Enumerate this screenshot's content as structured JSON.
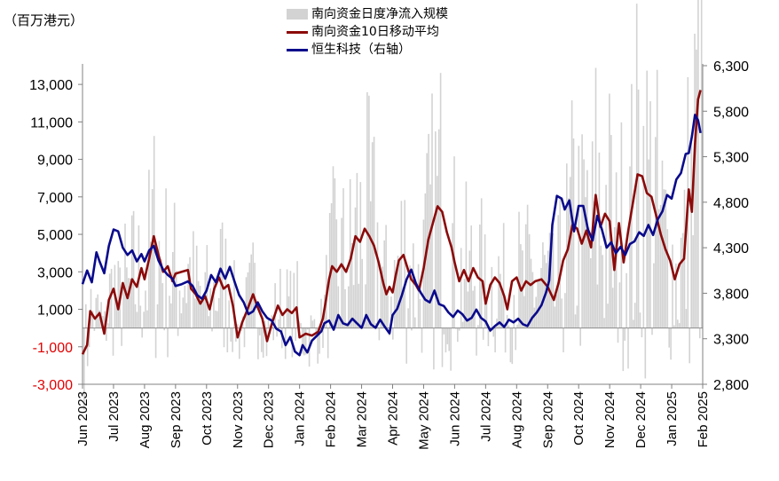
{
  "chart_data": {
    "type": "bar+line",
    "unit_label": "（百万港元）",
    "legend": [
      {
        "name": "南向资金日度净流入规模",
        "kind": "bar",
        "color": "#d3d3d3"
      },
      {
        "name": "南向资金10日移动平均",
        "kind": "line",
        "color": "#8b0a0a"
      },
      {
        "name": "恒生科技（右轴）",
        "kind": "line",
        "color": "#0a0a8c"
      }
    ],
    "left_axis": {
      "min": -3000,
      "max": 14000,
      "ticks": [
        -3000,
        -1000,
        1000,
        3000,
        5000,
        7000,
        9000,
        11000,
        13000
      ],
      "tick_labels": [
        "-3,000",
        "-1,000",
        "1,000",
        "3,000",
        "5,000",
        "7,000",
        "9,000",
        "11,000",
        "13,000"
      ],
      "negative_color": "#e00000"
    },
    "right_axis": {
      "min": 2800,
      "max": 6300,
      "ticks": [
        2800,
        3300,
        3800,
        4300,
        4800,
        5300,
        5800,
        6300
      ],
      "tick_labels": [
        "2,800",
        "3,300",
        "3,800",
        "4,300",
        "4,800",
        "5,300",
        "5,800",
        "6,300"
      ]
    },
    "x_range": [
      0,
      20
    ],
    "x_tick_labels": [
      "Jun 2023",
      "Jul 2023",
      "Aug 2023",
      "Sep 2023",
      "Oct 2023",
      "Nov 2023",
      "Dec 2023",
      "Jan 2024",
      "Feb 2024",
      "Mar 2024",
      "Apr 2024",
      "May 2024",
      "Jun 2024",
      "Jul 2024",
      "Aug 2024",
      "Sep 2024",
      "Oct 2024",
      "Nov 2024",
      "Dec 2024",
      "Jan 2025",
      "Feb 2025"
    ],
    "series": [
      {
        "name": "南向资金10日移动平均",
        "axis": "left",
        "points": [
          [
            0.0,
            -1400
          ],
          [
            0.15,
            -900
          ],
          [
            0.25,
            900
          ],
          [
            0.4,
            500
          ],
          [
            0.55,
            800
          ],
          [
            0.7,
            -300
          ],
          [
            0.85,
            1500
          ],
          [
            1.0,
            2100
          ],
          [
            1.15,
            1000
          ],
          [
            1.3,
            2400
          ],
          [
            1.45,
            1600
          ],
          [
            1.6,
            2600
          ],
          [
            1.75,
            2200
          ],
          [
            1.9,
            3200
          ],
          [
            2.0,
            2600
          ],
          [
            2.15,
            3700
          ],
          [
            2.3,
            4900
          ],
          [
            2.45,
            3900
          ],
          [
            2.6,
            3000
          ],
          [
            2.75,
            3300
          ],
          [
            2.9,
            2500
          ],
          [
            3.0,
            2900
          ],
          [
            3.2,
            3000
          ],
          [
            3.4,
            3100
          ],
          [
            3.5,
            2100
          ],
          [
            3.65,
            1800
          ],
          [
            3.8,
            1300
          ],
          [
            3.95,
            1700
          ],
          [
            4.1,
            1000
          ],
          [
            4.25,
            2100
          ],
          [
            4.4,
            2700
          ],
          [
            4.55,
            2100
          ],
          [
            4.7,
            2300
          ],
          [
            4.85,
            1200
          ],
          [
            5.0,
            -500
          ],
          [
            5.15,
            300
          ],
          [
            5.3,
            900
          ],
          [
            5.5,
            1800
          ],
          [
            5.65,
            1100
          ],
          [
            5.8,
            500
          ],
          [
            5.95,
            -700
          ],
          [
            6.1,
            200
          ],
          [
            6.3,
            1200
          ],
          [
            6.45,
            700
          ],
          [
            6.6,
            1000
          ],
          [
            6.75,
            800
          ],
          [
            6.9,
            1100
          ],
          [
            7.0,
            -500
          ],
          [
            7.2,
            -300
          ],
          [
            7.4,
            -400
          ],
          [
            7.6,
            -200
          ],
          [
            7.75,
            500
          ],
          [
            7.85,
            1500
          ],
          [
            7.95,
            2600
          ],
          [
            8.05,
            3300
          ],
          [
            8.2,
            3000
          ],
          [
            8.35,
            3400
          ],
          [
            8.5,
            3000
          ],
          [
            8.65,
            3700
          ],
          [
            8.8,
            4900
          ],
          [
            8.95,
            4600
          ],
          [
            9.1,
            5300
          ],
          [
            9.25,
            4900
          ],
          [
            9.4,
            4400
          ],
          [
            9.55,
            3500
          ],
          [
            9.7,
            2400
          ],
          [
            9.8,
            1800
          ],
          [
            9.9,
            2200
          ],
          [
            10.0,
            1900
          ],
          [
            10.1,
            2800
          ],
          [
            10.2,
            3600
          ],
          [
            10.35,
            3900
          ],
          [
            10.5,
            3100
          ],
          [
            10.6,
            2600
          ],
          [
            10.75,
            2300
          ],
          [
            10.85,
            2000
          ],
          [
            11.0,
            3200
          ],
          [
            11.15,
            4700
          ],
          [
            11.3,
            5600
          ],
          [
            11.45,
            6500
          ],
          [
            11.6,
            6200
          ],
          [
            11.75,
            5100
          ],
          [
            11.9,
            4300
          ],
          [
            12.0,
            3500
          ],
          [
            12.15,
            2500
          ],
          [
            12.3,
            3100
          ],
          [
            12.45,
            2500
          ],
          [
            12.6,
            3200
          ],
          [
            12.75,
            2700
          ],
          [
            12.9,
            2500
          ],
          [
            13.0,
            1300
          ],
          [
            13.15,
            2300
          ],
          [
            13.3,
            2700
          ],
          [
            13.45,
            2400
          ],
          [
            13.6,
            1700
          ],
          [
            13.7,
            1000
          ],
          [
            13.85,
            2500
          ],
          [
            14.0,
            2700
          ],
          [
            14.15,
            2000
          ],
          [
            14.3,
            2500
          ],
          [
            14.45,
            2300
          ],
          [
            14.6,
            2500
          ],
          [
            14.8,
            2600
          ],
          [
            15.0,
            2200
          ],
          [
            15.2,
            1500
          ],
          [
            15.35,
            2400
          ],
          [
            15.5,
            3600
          ],
          [
            15.65,
            4200
          ],
          [
            15.8,
            5500
          ],
          [
            15.95,
            5300
          ],
          [
            16.1,
            4500
          ],
          [
            16.25,
            5200
          ],
          [
            16.4,
            4300
          ],
          [
            16.55,
            7100
          ],
          [
            16.7,
            5400
          ],
          [
            16.85,
            6100
          ],
          [
            17.0,
            5700
          ],
          [
            17.15,
            3100
          ],
          [
            17.3,
            5600
          ],
          [
            17.45,
            3500
          ],
          [
            17.6,
            5200
          ],
          [
            17.75,
            6700
          ],
          [
            17.9,
            8200
          ],
          [
            18.05,
            8100
          ],
          [
            18.2,
            7200
          ],
          [
            18.35,
            7000
          ],
          [
            18.5,
            6000
          ],
          [
            18.65,
            5000
          ],
          [
            18.8,
            4200
          ],
          [
            18.95,
            3600
          ],
          [
            19.1,
            2600
          ],
          [
            19.25,
            3400
          ],
          [
            19.4,
            3700
          ],
          [
            19.55,
            7400
          ],
          [
            19.65,
            6200
          ],
          [
            19.75,
            9800
          ],
          [
            19.85,
            12200
          ],
          [
            19.93,
            12700
          ]
        ]
      },
      {
        "name": "恒生科技（右轴）",
        "axis": "right",
        "points": [
          [
            0.0,
            3900
          ],
          [
            0.15,
            4050
          ],
          [
            0.3,
            3920
          ],
          [
            0.45,
            4250
          ],
          [
            0.55,
            4150
          ],
          [
            0.7,
            4020
          ],
          [
            0.85,
            4320
          ],
          [
            1.0,
            4500
          ],
          [
            1.15,
            4480
          ],
          [
            1.3,
            4300
          ],
          [
            1.45,
            4220
          ],
          [
            1.6,
            4270
          ],
          [
            1.75,
            4150
          ],
          [
            1.9,
            4230
          ],
          [
            2.0,
            4150
          ],
          [
            2.15,
            4270
          ],
          [
            2.3,
            4320
          ],
          [
            2.45,
            4160
          ],
          [
            2.6,
            4060
          ],
          [
            2.75,
            4000
          ],
          [
            2.9,
            3960
          ],
          [
            3.0,
            3880
          ],
          [
            3.2,
            3900
          ],
          [
            3.4,
            3930
          ],
          [
            3.55,
            3880
          ],
          [
            3.7,
            3780
          ],
          [
            3.85,
            3740
          ],
          [
            4.0,
            3830
          ],
          [
            4.15,
            4000
          ],
          [
            4.3,
            3920
          ],
          [
            4.45,
            4070
          ],
          [
            4.6,
            3960
          ],
          [
            4.75,
            4090
          ],
          [
            4.9,
            3930
          ],
          [
            5.05,
            3780
          ],
          [
            5.2,
            3700
          ],
          [
            5.35,
            3570
          ],
          [
            5.5,
            3600
          ],
          [
            5.65,
            3700
          ],
          [
            5.8,
            3600
          ],
          [
            5.95,
            3530
          ],
          [
            6.1,
            3500
          ],
          [
            6.25,
            3410
          ],
          [
            6.4,
            3380
          ],
          [
            6.55,
            3230
          ],
          [
            6.7,
            3320
          ],
          [
            6.85,
            3160
          ],
          [
            7.0,
            3120
          ],
          [
            7.1,
            3230
          ],
          [
            7.25,
            3150
          ],
          [
            7.4,
            3280
          ],
          [
            7.55,
            3330
          ],
          [
            7.7,
            3380
          ],
          [
            7.8,
            3470
          ],
          [
            7.95,
            3500
          ],
          [
            8.1,
            3400
          ],
          [
            8.25,
            3560
          ],
          [
            8.4,
            3470
          ],
          [
            8.55,
            3450
          ],
          [
            8.7,
            3520
          ],
          [
            8.85,
            3470
          ],
          [
            9.0,
            3420
          ],
          [
            9.15,
            3560
          ],
          [
            9.3,
            3460
          ],
          [
            9.45,
            3420
          ],
          [
            9.6,
            3510
          ],
          [
            9.75,
            3430
          ],
          [
            9.9,
            3360
          ],
          [
            10.0,
            3560
          ],
          [
            10.15,
            3630
          ],
          [
            10.3,
            3780
          ],
          [
            10.45,
            3950
          ],
          [
            10.6,
            4060
          ],
          [
            10.75,
            3910
          ],
          [
            10.9,
            3810
          ],
          [
            11.05,
            3730
          ],
          [
            11.2,
            3700
          ],
          [
            11.35,
            3830
          ],
          [
            11.5,
            3680
          ],
          [
            11.65,
            3660
          ],
          [
            11.8,
            3590
          ],
          [
            11.95,
            3540
          ],
          [
            12.1,
            3610
          ],
          [
            12.25,
            3570
          ],
          [
            12.4,
            3500
          ],
          [
            12.55,
            3530
          ],
          [
            12.7,
            3620
          ],
          [
            12.85,
            3530
          ],
          [
            13.0,
            3490
          ],
          [
            13.15,
            3390
          ],
          [
            13.3,
            3440
          ],
          [
            13.45,
            3480
          ],
          [
            13.6,
            3430
          ],
          [
            13.75,
            3510
          ],
          [
            13.9,
            3480
          ],
          [
            14.05,
            3520
          ],
          [
            14.2,
            3460
          ],
          [
            14.35,
            3440
          ],
          [
            14.5,
            3530
          ],
          [
            14.65,
            3590
          ],
          [
            14.8,
            3670
          ],
          [
            14.95,
            3810
          ],
          [
            15.05,
            3940
          ],
          [
            15.15,
            4550
          ],
          [
            15.3,
            4870
          ],
          [
            15.45,
            4840
          ],
          [
            15.55,
            4720
          ],
          [
            15.7,
            4820
          ],
          [
            15.85,
            4480
          ],
          [
            16.0,
            4760
          ],
          [
            16.15,
            4760
          ],
          [
            16.3,
            4500
          ],
          [
            16.45,
            4380
          ],
          [
            16.6,
            4650
          ],
          [
            16.75,
            4500
          ],
          [
            16.9,
            4300
          ],
          [
            17.05,
            4360
          ],
          [
            17.2,
            4240
          ],
          [
            17.35,
            4310
          ],
          [
            17.5,
            4220
          ],
          [
            17.65,
            4340
          ],
          [
            17.8,
            4370
          ],
          [
            17.95,
            4470
          ],
          [
            18.1,
            4430
          ],
          [
            18.25,
            4550
          ],
          [
            18.4,
            4440
          ],
          [
            18.55,
            4610
          ],
          [
            18.7,
            4700
          ],
          [
            18.85,
            4880
          ],
          [
            19.0,
            4840
          ],
          [
            19.15,
            5050
          ],
          [
            19.3,
            5120
          ],
          [
            19.45,
            5330
          ],
          [
            19.55,
            5340
          ],
          [
            19.65,
            5520
          ],
          [
            19.75,
            5760
          ],
          [
            19.85,
            5700
          ],
          [
            19.93,
            5560
          ]
        ]
      }
    ]
  }
}
